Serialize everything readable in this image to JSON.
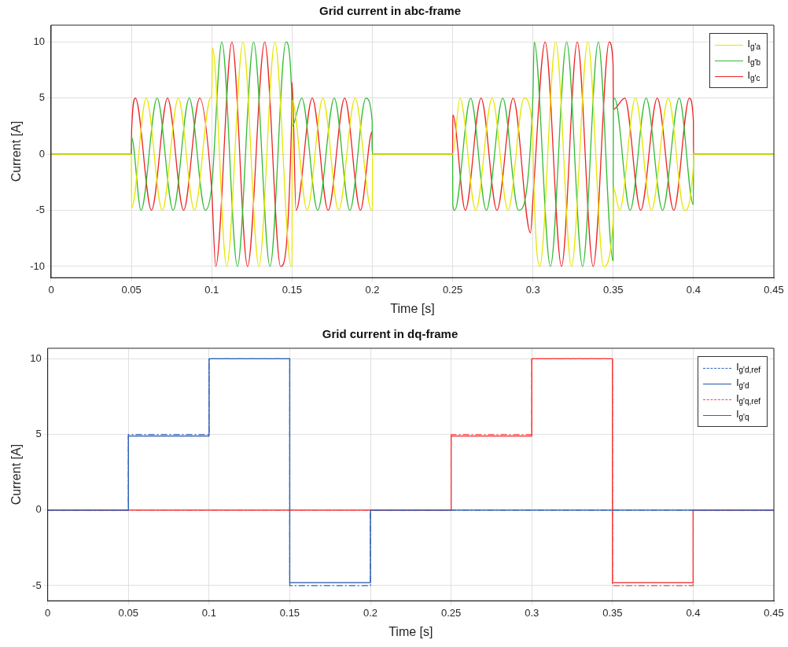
{
  "chart_data": [
    {
      "type": "line",
      "title": "Grid current in abc-frame",
      "xlabel": "Time [s]",
      "ylabel": "Current [A]",
      "xlim": [
        0,
        0.45
      ],
      "xticks": [
        0,
        0.05,
        0.1,
        0.15,
        0.2,
        0.25,
        0.3,
        0.35,
        0.4,
        0.45
      ],
      "ylim": [
        -11,
        11.5
      ],
      "yticks": [
        -10,
        -5,
        0,
        5,
        10
      ],
      "grid": true,
      "legend": "top right",
      "line_style": "solid",
      "marker": "none",
      "series": [
        {
          "name": "I$_{g'a}$",
          "color": "#e6e600",
          "x": [
            0,
            0.05,
            0.0501,
            0.0592,
            0.0692,
            0.0792,
            0.0892,
            0.0992,
            0.1,
            0.1005,
            0.1093,
            0.1195,
            0.1294,
            0.1393,
            0.1495,
            0.15,
            0.1501,
            0.1594,
            0.1692,
            0.179,
            0.1893,
            0.1995,
            0.2,
            0.2001,
            0.25,
            0.2546,
            0.2644,
            0.2746,
            0.2845,
            0.2945,
            0.2999,
            0.3001,
            0.3043,
            0.3142,
            0.324,
            0.3342,
            0.344,
            0.3499,
            0.3501,
            0.354,
            0.3638,
            0.3738,
            0.3843,
            0.3943,
            0.3999,
            0.4,
            0.45
          ],
          "values": [
            0,
            0,
            -4.8,
            5,
            -5,
            5,
            -5,
            5,
            5.2,
            9.5,
            -10,
            10,
            -10,
            10,
            -10,
            -10,
            4.8,
            -5,
            5,
            -5,
            5,
            -5,
            -5,
            0,
            0,
            5,
            -5,
            5,
            -5,
            5,
            2,
            0,
            -10,
            10,
            -10,
            10,
            -10,
            -6,
            -3,
            -5,
            5,
            -5,
            5,
            -5,
            -1,
            0,
            0
          ]
        },
        {
          "name": "I$_{g'b}$",
          "color": "#33bb33",
          "x": [
            0,
            0.05,
            0.0501,
            0.056,
            0.066,
            0.076,
            0.086,
            0.096,
            0.0999,
            0.1063,
            0.116,
            0.1261,
            0.1363,
            0.1462,
            0.1499,
            0.1501,
            0.1561,
            0.166,
            0.1763,
            0.186,
            0.196,
            0.1999,
            0.2,
            0.25,
            0.2501,
            0.2513,
            0.2612,
            0.271,
            0.2812,
            0.291,
            0.2999,
            0.3008,
            0.3109,
            0.321,
            0.3309,
            0.3407,
            0.3499,
            0.3501,
            0.3508,
            0.3605,
            0.3705,
            0.3807,
            0.3911,
            0.3999,
            0.4,
            0.45
          ],
          "values": [
            0,
            0,
            1.5,
            -5,
            5,
            -5,
            5,
            -5,
            -3,
            10,
            -10,
            10,
            -10,
            10,
            5,
            2.5,
            5,
            -5,
            5,
            -5,
            5,
            3,
            0,
            0,
            -4.5,
            -5,
            5,
            -5,
            5,
            -5,
            4.8,
            10,
            -10,
            10,
            -10,
            10,
            -9.5,
            4.8,
            5,
            -5,
            5,
            -5,
            5,
            -4.5,
            0,
            0
          ]
        },
        {
          "name": "I$_{g'c}$",
          "color": "#ee2222",
          "x": [
            0,
            0.05,
            0.0501,
            0.0525,
            0.0625,
            0.0725,
            0.0825,
            0.0925,
            0.0999,
            0.1025,
            0.1126,
            0.1223,
            0.133,
            0.1429,
            0.1499,
            0.1501,
            0.1525,
            0.1626,
            0.1725,
            0.1828,
            0.1926,
            0.1999,
            0.2,
            0.25,
            0.2501,
            0.2579,
            0.2677,
            0.2776,
            0.2877,
            0.2985,
            0.3,
            0.3076,
            0.3178,
            0.3276,
            0.3375,
            0.3475,
            0.3499,
            0.3501,
            0.3572,
            0.3671,
            0.3774,
            0.3877,
            0.3974,
            0.3999,
            0.4,
            0.45
          ],
          "values": [
            0,
            0,
            2,
            5,
            -5,
            5,
            -5,
            5,
            -3,
            -10,
            10,
            -10,
            10,
            -10,
            4,
            6.4,
            -5,
            5,
            -5,
            5,
            -5,
            2,
            0,
            0,
            3.5,
            -5,
            5,
            -5,
            5,
            -7,
            -4,
            10,
            -10,
            10,
            -10,
            10,
            8,
            4,
            5,
            -5,
            5,
            -5,
            5,
            3,
            0,
            0
          ]
        }
      ]
    },
    {
      "type": "step",
      "title": "Grid current in dq-frame",
      "xlabel": "Time [s]",
      "ylabel": "Current [A]",
      "xlim": [
        0,
        0.45
      ],
      "xticks": [
        0,
        0.05,
        0.1,
        0.15,
        0.2,
        0.25,
        0.3,
        0.35,
        0.4,
        0.45
      ],
      "ylim": [
        -6,
        10.7
      ],
      "yticks": [
        -5,
        0,
        5,
        10
      ],
      "grid": true,
      "legend": "top right",
      "marker": "none",
      "series": [
        {
          "name": "I$_{g'd,ref}$",
          "color": "#3366bb",
          "line_style": "dashed",
          "x": [
            0,
            0.05,
            0.1,
            0.15,
            0.2,
            0.45
          ],
          "values": [
            0,
            5,
            10,
            -5,
            0,
            0
          ]
        },
        {
          "name": "I$_{g'd}$",
          "color": "#2255aa",
          "line_style": "solid",
          "x": [
            0,
            0.05,
            0.1,
            0.15,
            0.2,
            0.45
          ],
          "values": [
            0,
            4.9,
            10,
            -4.8,
            0,
            0
          ]
        },
        {
          "name": "I$_{g'q,ref}$",
          "color": "#ff4444",
          "line_style": "dashed",
          "x": [
            0,
            0.25,
            0.3,
            0.35,
            0.4,
            0.45
          ],
          "values": [
            0,
            5,
            10,
            -5,
            0,
            0
          ]
        },
        {
          "name": "I$_{g'q}$",
          "color": "#ee2222",
          "line_style": "solid",
          "x": [
            0,
            0.25,
            0.3,
            0.35,
            0.4,
            0.45
          ],
          "values": [
            0,
            4.9,
            10,
            -4.8,
            0,
            0
          ]
        }
      ]
    }
  ]
}
